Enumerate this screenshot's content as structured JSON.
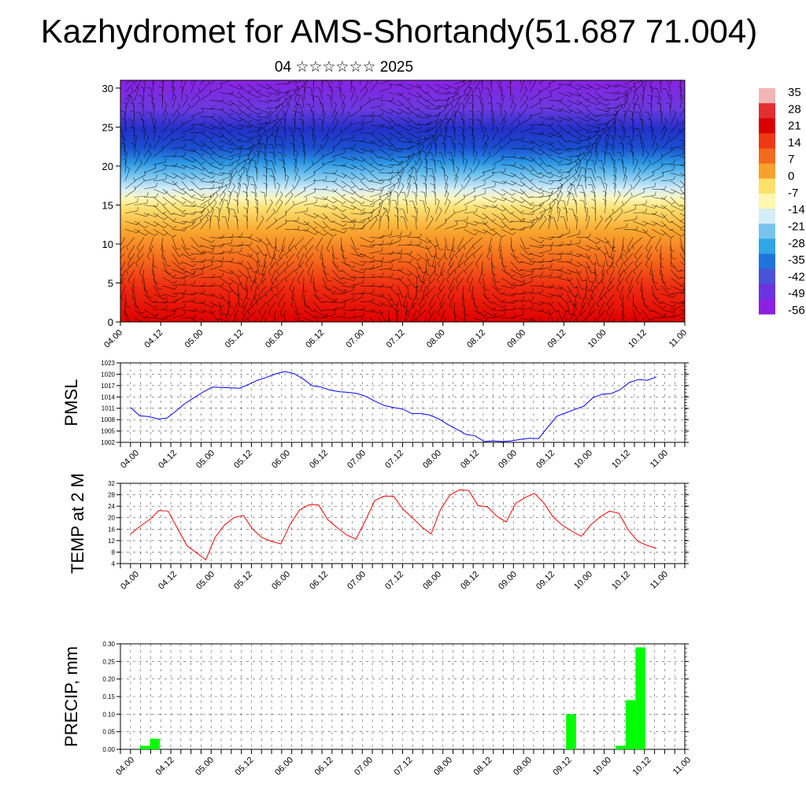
{
  "title": "Kazhydromet for AMS-Shortandy(51.687 71.004)",
  "subtitle": "04 ☆☆☆☆☆☆ 2025",
  "x_tick_labels": [
    "04.00",
    "04.12",
    "05.00",
    "05.12",
    "06.00",
    "06.12",
    "07.00",
    "07.12",
    "08.00",
    "08.12",
    "09.00",
    "09.12",
    "10.00",
    "10.12",
    "11.00"
  ],
  "chart_data": [
    {
      "type": "heatmap",
      "title": "",
      "xlabel": "",
      "ylabel": "",
      "x_range": [
        "04.00",
        "11.00"
      ],
      "ylim": [
        0,
        31
      ],
      "y_ticks": [
        0,
        5,
        10,
        15,
        20,
        25,
        30
      ],
      "colorbar": {
        "labels": [
          "35",
          "28",
          "21",
          "14",
          "7",
          "0",
          "-7",
          "-14",
          "-21",
          "-28",
          "-35",
          "-42",
          "-49",
          "-56"
        ],
        "colors": [
          "#f2b6b6",
          "#e23030",
          "#d80000",
          "#ee3a12",
          "#f36a1c",
          "#f8a02c",
          "#fde068",
          "#fff7b0",
          "#d4eef8",
          "#78c4ee",
          "#2ea6e8",
          "#1e74dc",
          "#4a52da",
          "#6a34e0",
          "#8a20e0"
        ]
      },
      "wind_barbs": true,
      "description_bands": [
        {
          "from_y": 0,
          "to_y": 8,
          "color": "red-orange"
        },
        {
          "from_y": 8,
          "to_y": 15,
          "color": "orange-yellow"
        },
        {
          "from_y": 15,
          "to_y": 20,
          "color": "light-blue"
        },
        {
          "from_y": 20,
          "to_y": 26,
          "color": "blue"
        },
        {
          "from_y": 26,
          "to_y": 31,
          "color": "purple"
        }
      ]
    },
    {
      "type": "line",
      "ylabel": "PMSL",
      "ylim": [
        1002,
        1023
      ],
      "y_ticks": [
        1002,
        1005,
        1008,
        1011,
        1014,
        1017,
        1020,
        1023
      ],
      "color": "#0000ff",
      "series": [
        {
          "values": [
            1011.2,
            1009,
            1008.8,
            1008.2,
            1008.4,
            1010.3,
            1012.3,
            1013.8,
            1015.3,
            1016.6,
            1016.5,
            1016.4,
            1016.3,
            1017.3,
            1018.4,
            1019.2,
            1020.1,
            1020.7,
            1020.2,
            1018.8,
            1017,
            1016.6,
            1015.8,
            1015.4,
            1015.2,
            1014.9,
            1014.1,
            1012.8,
            1011.7,
            1011.2,
            1010.8,
            1009.6,
            1009.6,
            1009.2,
            1008.2,
            1006.7,
            1005.4,
            1004.1,
            1003.7,
            1002.2,
            1002.4,
            1002.2,
            1002.4,
            1002.8,
            1003.1,
            1003,
            1006,
            1008.9,
            1009.8,
            1010.7,
            1011.6,
            1013.8,
            1014.7,
            1014.9,
            1015.9,
            1017.8,
            1018.6,
            1018.4,
            1019.3
          ]
        }
      ]
    },
    {
      "type": "line",
      "ylabel": "TEMP at 2 M",
      "ylim": [
        4,
        32
      ],
      "y_ticks": [
        4,
        8,
        12,
        16,
        20,
        24,
        28,
        32
      ],
      "color": "#ff0000",
      "series": [
        {
          "values": [
            14.3,
            17,
            19.3,
            22.5,
            22.3,
            16.2,
            10.2,
            7.8,
            5.3,
            13.2,
            17.5,
            20,
            20.8,
            16,
            13,
            11.8,
            10.8,
            17.8,
            22.7,
            24.5,
            24.5,
            19.3,
            16.5,
            14,
            12.5,
            19,
            26,
            27.5,
            27.5,
            23,
            20,
            16.8,
            14.3,
            22.8,
            27.9,
            29.7,
            29.5,
            24.2,
            23.8,
            20.5,
            18.5,
            25,
            27,
            28.5,
            25.2,
            20.2,
            17.3,
            15.3,
            13.5,
            17.5,
            20.3,
            22.3,
            21.5,
            15.7,
            11.8,
            10.3,
            9.3
          ]
        }
      ]
    },
    {
      "type": "bar",
      "ylabel": "PRECIP, mm",
      "ylim": [
        0,
        0.3
      ],
      "y_ticks": [
        "0.00",
        "0.05",
        "0.10",
        "0.15",
        "0.20",
        "0.25",
        "0.30"
      ],
      "color": "#00ff00",
      "series": [
        {
          "values": [
            0,
            0,
            0.01,
            0.03,
            0,
            0,
            0,
            0,
            0,
            0,
            0,
            0,
            0,
            0,
            0,
            0,
            0,
            0,
            0,
            0,
            0,
            0,
            0,
            0,
            0,
            0,
            0,
            0,
            0,
            0,
            0,
            0,
            0,
            0,
            0,
            0,
            0,
            0,
            0,
            0,
            0,
            0,
            0,
            0,
            0,
            0.1,
            0,
            0,
            0,
            0,
            0.01,
            0.14,
            0.29,
            0,
            0,
            0,
            0
          ]
        }
      ]
    }
  ]
}
